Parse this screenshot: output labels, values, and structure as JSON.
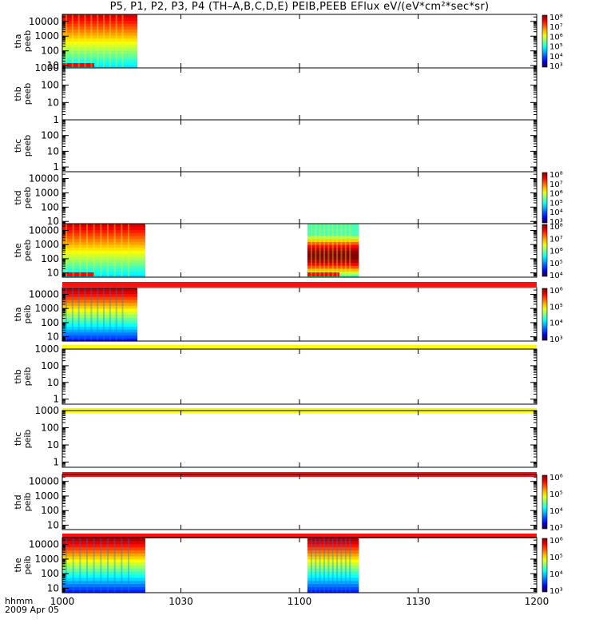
{
  "title": "P5, P1, P2, P3, P4 (TH–A,B,C,D,E) PEIB,PEEB EFlux eV/(eV*cm²*sec*sr)",
  "footer": {
    "hhmm": "hhmm",
    "date": "2009 Apr 05"
  },
  "colors": {
    "bar_red": "#ff1010",
    "bar_yellow": "#ffff00"
  },
  "chart_data": {
    "type": "heatmap",
    "title": "P5, P1, P2, P3, P4 (TH–A,B,C,D,E) PEIB,PEEB EFlux eV/(eV*cm²*sec*sr)",
    "x_axis": {
      "range": [
        "1000",
        "1200"
      ],
      "ticks": [
        "1000",
        "1030",
        "1100",
        "1130",
        "1200"
      ],
      "label": "hhmm"
    },
    "panels": [
      {
        "probe": "tha",
        "product": "peeb",
        "ylim": [
          7,
          30000
        ],
        "yticks": [
          "10",
          "100",
          "1000",
          "10000"
        ],
        "colorbar": [
          "10³",
          "10⁴",
          "10⁵",
          "10⁶",
          "10⁷",
          "10⁸"
        ],
        "data_intervals": [
          [
            "1000",
            "1019"
          ]
        ],
        "bar_below": ""
      },
      {
        "probe": "thb",
        "product": "peeb",
        "ylim": [
          1,
          1000
        ],
        "yticks": [
          "1",
          "10",
          "100",
          "1000"
        ],
        "colorbar": [],
        "data_intervals": [],
        "bar_below": ""
      },
      {
        "probe": "thc",
        "product": "peeb",
        "ylim": [
          0.5,
          1000
        ],
        "yticks": [
          "1",
          "10",
          "100"
        ],
        "colorbar": [],
        "data_intervals": [],
        "bar_below": ""
      },
      {
        "probe": "thd",
        "product": "peeb",
        "ylim": [
          7,
          30000
        ],
        "yticks": [
          "10",
          "100",
          "1000",
          "10000"
        ],
        "colorbar": [
          "10³",
          "10⁴",
          "10⁵",
          "10⁶",
          "10⁷",
          "10⁸"
        ],
        "data_intervals": [],
        "bar_below": ""
      },
      {
        "probe": "the",
        "product": "peeb",
        "ylim": [
          5,
          30000
        ],
        "yticks": [
          "10",
          "100",
          "1000",
          "10000"
        ],
        "colorbar": [
          "10⁴",
          "10⁵",
          "10⁶",
          "10⁷",
          "10⁸"
        ],
        "data_intervals": [
          [
            "1000",
            "1021"
          ],
          [
            "1062",
            "1115"
          ]
        ],
        "bar_below": "red"
      },
      {
        "probe": "tha",
        "product": "peib",
        "ylim": [
          5,
          30000
        ],
        "yticks": [
          "10",
          "100",
          "1000",
          "10000"
        ],
        "colorbar": [
          "10³",
          "10⁴",
          "10⁵",
          "10⁶"
        ],
        "data_intervals": [
          [
            "1000",
            "1019"
          ]
        ],
        "bar_below": "yellow"
      },
      {
        "probe": "thb",
        "product": "peib",
        "ylim": [
          0.5,
          1000
        ],
        "yticks": [
          "1",
          "10",
          "100",
          "1000"
        ],
        "colorbar": [],
        "data_intervals": [],
        "bar_below": "yellow"
      },
      {
        "probe": "thc",
        "product": "peib",
        "ylim": [
          0.5,
          1000
        ],
        "yticks": [
          "1",
          "10",
          "100",
          "1000"
        ],
        "colorbar": [],
        "data_intervals": [],
        "bar_below": "red"
      },
      {
        "probe": "thd",
        "product": "peib",
        "ylim": [
          5,
          30000
        ],
        "yticks": [
          "10",
          "100",
          "1000",
          "10000"
        ],
        "colorbar": [
          "10³",
          "10⁴",
          "10⁵",
          "10⁶"
        ],
        "data_intervals": [],
        "bar_below": "red"
      },
      {
        "probe": "the",
        "product": "peib",
        "ylim": [
          5,
          30000
        ],
        "yticks": [
          "10",
          "100",
          "1000",
          "10000"
        ],
        "colorbar": [
          "10³",
          "10⁴",
          "10⁵",
          "10⁶"
        ],
        "data_intervals": [
          [
            "1000",
            "1021"
          ],
          [
            "1062",
            "1115"
          ]
        ],
        "bar_below": ""
      }
    ]
  }
}
